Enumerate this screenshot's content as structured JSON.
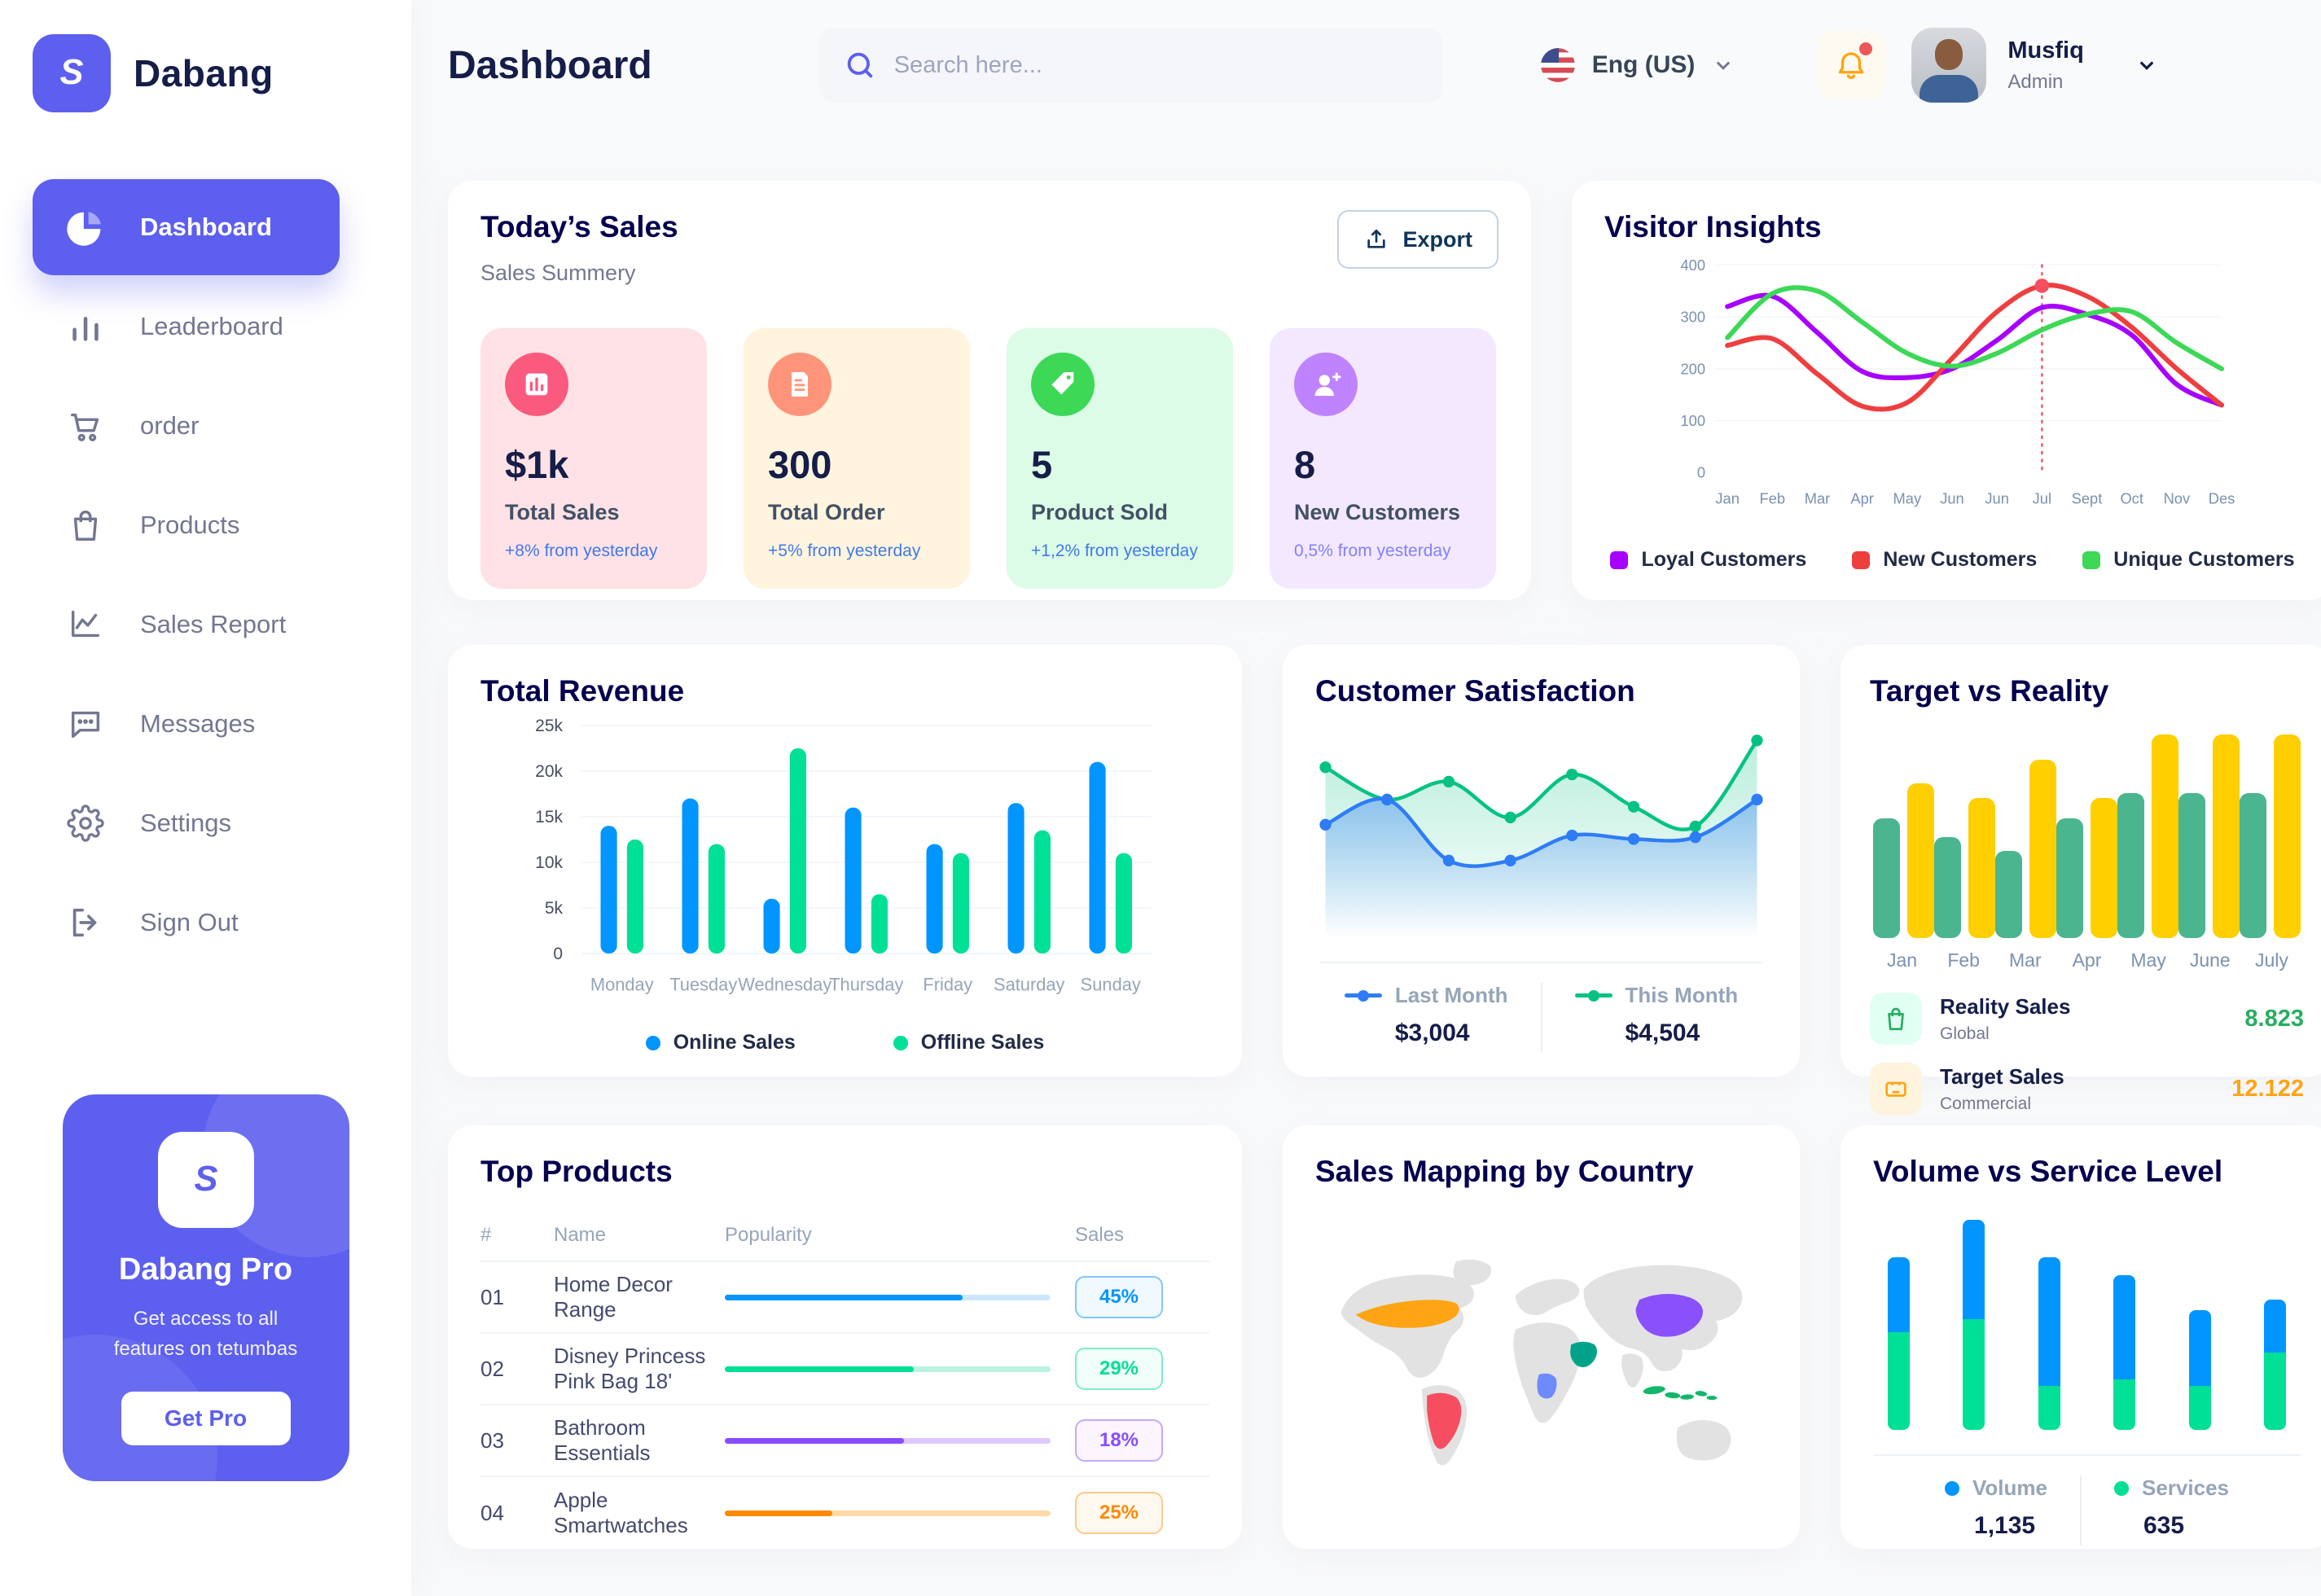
{
  "header": {
    "title": "Dashboard",
    "search_placeholder": "Search here...",
    "language": "Eng (US)",
    "user": {
      "name": "Musfiq",
      "role": "Admin"
    }
  },
  "sidebar": {
    "brand": "Dabang",
    "items": [
      {
        "label": "Dashboard",
        "icon": "pie-chart-icon",
        "active": true
      },
      {
        "label": "Leaderboard",
        "icon": "bar-chart-icon",
        "active": false
      },
      {
        "label": "order",
        "icon": "cart-icon",
        "active": false
      },
      {
        "label": "Products",
        "icon": "bag-icon",
        "active": false
      },
      {
        "label": "Sales Report",
        "icon": "line-chart-icon",
        "active": false
      },
      {
        "label": "Messages",
        "icon": "chat-icon",
        "active": false
      },
      {
        "label": "Settings",
        "icon": "gear-icon",
        "active": false
      },
      {
        "label": "Sign Out",
        "icon": "signout-icon",
        "active": false
      }
    ],
    "pro": {
      "title": "Dabang Pro",
      "subtitle": "Get access to all features on tetumbas",
      "cta": "Get Pro"
    }
  },
  "today": {
    "title": "Today’s Sales",
    "subtitle": "Sales Summery",
    "export_label": "Export",
    "stats": [
      {
        "value": "$1k",
        "label": "Total Sales",
        "delta": "+8% from yesterday",
        "bg": "#FFE2E5",
        "icon_bg": "#FA5A7D",
        "icon": "stat-chart-icon",
        "delta_color": "#4079ED"
      },
      {
        "value": "300",
        "label": "Total Order",
        "delta": "+5% from yesterday",
        "bg": "#FFF4DE",
        "icon_bg": "#FF947A",
        "icon": "stat-receipt-icon",
        "delta_color": "#4079ED"
      },
      {
        "value": "5",
        "label": "Product Sold",
        "delta": "+1,2% from yesterday",
        "bg": "#DCFCE7",
        "icon_bg": "#3CD856",
        "icon": "stat-tag-icon",
        "delta_color": "#4079ED"
      },
      {
        "value": "8",
        "label": "New Customers",
        "delta": "0,5% from yesterday",
        "bg": "#F3E8FF",
        "icon_bg": "#BF83FF",
        "icon": "stat-user-plus-icon",
        "delta_color": "#8280FF"
      }
    ]
  },
  "visitor": {
    "title": "Visitor Insights"
  },
  "revenue": {
    "title": "Total Revenue"
  },
  "satisfaction": {
    "title": "Customer Satisfaction",
    "legend": [
      {
        "label": "Last Month",
        "value": "$3,004",
        "color": "#2E7CF6"
      },
      {
        "label": "This Month",
        "value": "$4,504",
        "color": "#05C283"
      }
    ]
  },
  "target": {
    "title": "Target vs Reality",
    "legend": [
      {
        "title": "Reality Sales",
        "sub": "Global",
        "value": "8.823",
        "value_color": "#27AE60",
        "icon": "bag-green-icon",
        "icon_bg": "#E2FFF3",
        "icon_color": "#27AE60"
      },
      {
        "title": "Target Sales",
        "sub": "Commercial",
        "value": "12.122",
        "value_color": "#FFA412",
        "icon": "ticket-yellow-icon",
        "icon_bg": "#FFF4DE",
        "icon_color": "#FFA412"
      }
    ]
  },
  "products": {
    "title": "Top Products",
    "columns": [
      "#",
      "Name",
      "Popularity",
      "Sales"
    ],
    "rows": [
      {
        "num": "01",
        "name": "Home Decor Range",
        "fill": 0.73,
        "value": "45%",
        "color": "#0095FF",
        "track": "#CDE7FF",
        "badge_bg": "#F0F9FF",
        "badge_border": "#7FC8FF"
      },
      {
        "num": "02",
        "name": "Disney Princess Pink Bag 18'",
        "fill": 0.58,
        "value": "29%",
        "color": "#00E096",
        "track": "#B9F5DE",
        "badge_bg": "#F1FDF8",
        "badge_border": "#7DEFC4"
      },
      {
        "num": "03",
        "name": "Bathroom Essentials",
        "fill": 0.55,
        "value": "18%",
        "color": "#884DFF",
        "track": "#DDC9FF",
        "badge_bg": "#FBF5FF",
        "badge_border": "#C5A8FF"
      },
      {
        "num": "04",
        "name": "Apple Smartwatches",
        "fill": 0.33,
        "value": "25%",
        "color": "#FF8900",
        "track": "#FFD9A7",
        "badge_bg": "#FFF8EF",
        "badge_border": "#FFC98A"
      }
    ]
  },
  "map": {
    "title": "Sales Mapping by Country",
    "countries": [
      {
        "name": "United States",
        "color": "#FFA412"
      },
      {
        "name": "Brazil",
        "color": "#F64E60"
      },
      {
        "name": "Saudi Arabia",
        "color": "#00A389"
      },
      {
        "name": "DR Congo",
        "color": "#6E8BFB"
      },
      {
        "name": "China",
        "color": "#8950FC"
      },
      {
        "name": "Indonesia",
        "color": "#12B76A"
      }
    ]
  },
  "volume": {
    "title": "Volume vs Service Level",
    "legend": [
      {
        "label": "Volume",
        "value": "1,135",
        "color": "#0095FF"
      },
      {
        "label": "Services",
        "value": "635",
        "color": "#00E096"
      }
    ]
  },
  "chart_data": [
    {
      "id": "visitor_insights",
      "type": "line",
      "x": [
        "Jan",
        "Feb",
        "Mar",
        "Apr",
        "May",
        "Jun",
        "Jun",
        "Jul",
        "Sept",
        "Oct",
        "Nov",
        "Des"
      ],
      "ylim": [
        0,
        400
      ],
      "yticks": [
        0,
        100,
        200,
        300,
        400
      ],
      "series": [
        {
          "name": "Loyal Customers",
          "color": "#A700FF",
          "values": [
            320,
            340,
            270,
            195,
            183,
            200,
            255,
            318,
            305,
            265,
            170,
            130
          ]
        },
        {
          "name": "New Customers",
          "color": "#EF3E3E",
          "values": [
            245,
            258,
            190,
            128,
            135,
            220,
            310,
            360,
            340,
            280,
            200,
            130
          ]
        },
        {
          "name": "Unique Customers",
          "color": "#3CD856",
          "values": [
            260,
            345,
            350,
            290,
            230,
            205,
            230,
            275,
            305,
            310,
            250,
            200
          ]
        }
      ],
      "annotation": {
        "x_index": 7,
        "marker_series": "New Customers",
        "marker_value": 360
      }
    },
    {
      "id": "total_revenue",
      "type": "bar",
      "categories": [
        "Monday",
        "Tuesday",
        "Wednesday",
        "Thursday",
        "Friday",
        "Saturday",
        "Sunday"
      ],
      "ylim": [
        0,
        25000
      ],
      "yticks": [
        "0",
        "5k",
        "10k",
        "15k",
        "20k",
        "25k"
      ],
      "series": [
        {
          "name": "Online Sales",
          "color": "#0095FF",
          "values": [
            14000,
            17000,
            6000,
            16000,
            12000,
            16500,
            21000
          ]
        },
        {
          "name": "Offline Sales",
          "color": "#00E096",
          "values": [
            12500,
            12000,
            22500,
            6500,
            11000,
            13500,
            11000
          ]
        }
      ]
    },
    {
      "id": "customer_satisfaction",
      "type": "area",
      "series": [
        {
          "name": "Last Month",
          "color": "#2E7CF6",
          "values": [
            48,
            62,
            28,
            28,
            42,
            40,
            41,
            62
          ]
        },
        {
          "name": "This Month",
          "color": "#05C283",
          "values": [
            80,
            62,
            72,
            52,
            76,
            58,
            47,
            95
          ]
        }
      ]
    },
    {
      "id": "target_vs_reality",
      "type": "bar",
      "categories": [
        "Jan",
        "Feb",
        "Mar",
        "Apr",
        "May",
        "June",
        "July"
      ],
      "ymax": 14.5,
      "series": [
        {
          "name": "Reality Sales",
          "color": "#4AB58E",
          "values": [
            8.5,
            7.2,
            6.2,
            8.5,
            10.3,
            10.3,
            10.3
          ]
        },
        {
          "name": "Target Sales",
          "color": "#FFCF00",
          "values": [
            11,
            10,
            12.7,
            10,
            14.5,
            14.5,
            14.5
          ]
        }
      ]
    },
    {
      "id": "volume_service",
      "type": "stacked-bar",
      "ymax": 95,
      "series": [
        {
          "name": "Volume",
          "color": "#0095FF",
          "values": [
            34,
            45,
            58,
            47,
            34,
            24
          ]
        },
        {
          "name": "Services",
          "color": "#00E096",
          "values": [
            44,
            50,
            20,
            23,
            20,
            35
          ]
        }
      ]
    }
  ]
}
